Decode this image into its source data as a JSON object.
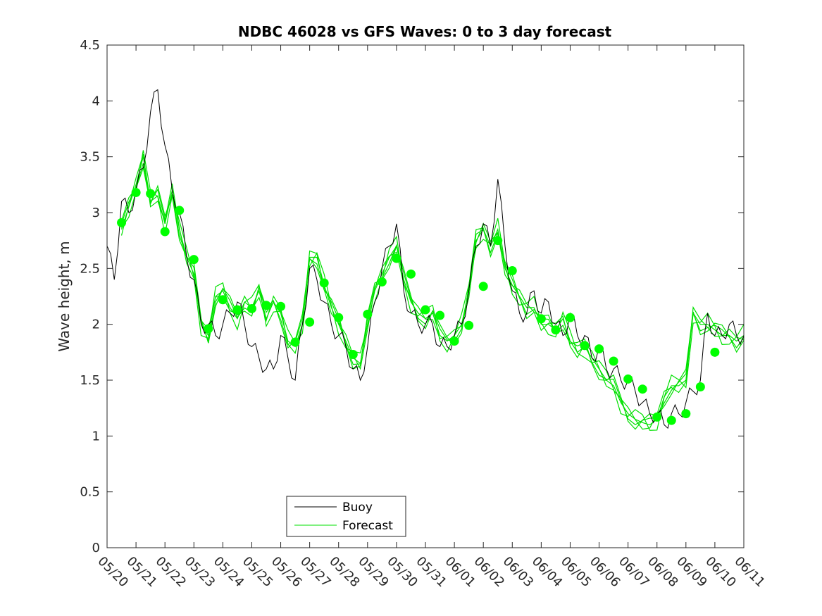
{
  "chart_data": {
    "type": "line",
    "title": "NDBC 46028 vs GFS Waves: 0 to 3 day forecast",
    "xlabel": "",
    "ylabel": "Wave height, m",
    "x_tick_labels": [
      "05/20",
      "05/21",
      "05/22",
      "05/23",
      "05/24",
      "05/25",
      "05/26",
      "05/27",
      "05/28",
      "05/29",
      "05/30",
      "05/31",
      "06/01",
      "06/02",
      "06/03",
      "06/04",
      "06/05",
      "06/06",
      "06/07",
      "06/08",
      "06/09",
      "06/10",
      "06/11"
    ],
    "y_ticks": [
      0,
      0.5,
      1,
      1.5,
      2,
      2.5,
      3,
      3.5,
      4,
      4.5
    ],
    "xlim_days": [
      0,
      22
    ],
    "ylim": [
      0,
      4.5
    ],
    "grid": false,
    "legend": {
      "placement": "bottom-center",
      "entries": [
        {
          "label": "Buoy",
          "color": "#000000"
        },
        {
          "label": "Forecast",
          "color": "#00e000"
        }
      ]
    },
    "colors": {
      "buoy": "#000000",
      "forecast": "#00e000",
      "markers": "#00ff00"
    },
    "buoy_series": {
      "name": "Buoy",
      "x_days": [
        0,
        0.25,
        0.5,
        0.75,
        1,
        1.25,
        1.5,
        1.75,
        2,
        2.25,
        2.5,
        2.75,
        3,
        3.25,
        3.5,
        3.75,
        4,
        4.25,
        4.5,
        4.75,
        5,
        5.25,
        5.5,
        5.75,
        6,
        6.25,
        6.5,
        6.75,
        7,
        7.25,
        7.5,
        7.75,
        8,
        8.25,
        8.5,
        8.75,
        9,
        9.25,
        9.5,
        9.75,
        10,
        10.25,
        10.5,
        10.75,
        11,
        11.25,
        11.5,
        11.75,
        12,
        12.25,
        12.5,
        12.75,
        13,
        13.25,
        13.5,
        13.75,
        14,
        14.25,
        14.5,
        14.75,
        15,
        15.25,
        15.5,
        15.75,
        16,
        16.25,
        16.5,
        16.75,
        17,
        17.25,
        17.5,
        17.75,
        18,
        18.25,
        18.5,
        18.75,
        19,
        19.25,
        19.5,
        19.75,
        20,
        20.25,
        20.5,
        20.75,
        21,
        21.25,
        21.5,
        21.75,
        22
      ],
      "values": [
        2.7,
        2.4,
        3.1,
        3.0,
        3.2,
        3.4,
        3.9,
        4.1,
        3.6,
        3.2,
        3.0,
        2.6,
        2.4,
        2.0,
        2.0,
        1.9,
        2.0,
        2.1,
        2.2,
        2.0,
        1.8,
        1.7,
        1.6,
        1.6,
        1.9,
        1.7,
        1.5,
        2.0,
        2.5,
        2.4,
        2.2,
        2.0,
        1.9,
        1.8,
        1.6,
        1.5,
        1.8,
        2.2,
        2.5,
        2.7,
        2.9,
        2.3,
        2.1,
        2.0,
        2.0,
        2.0,
        1.8,
        1.8,
        1.9,
        2.0,
        2.3,
        2.7,
        2.9,
        2.7,
        3.3,
        2.7,
        2.3,
        2.1,
        2.1,
        2.3,
        2.1,
        2.2,
        2.0,
        1.9,
        2.1,
        1.9,
        1.9,
        1.7,
        1.8,
        1.6,
        1.6,
        1.5,
        1.5,
        1.4,
        1.3,
        1.2,
        1.2,
        1.1,
        1.2,
        1.2,
        1.3,
        1.4,
        1.5,
        2.1,
        1.9,
        1.9,
        2.0,
        1.9,
        1.9
      ]
    },
    "forecast_series": {
      "name": "Forecast",
      "x_days": [
        0.5,
        0.75,
        1,
        1.25,
        1.5,
        1.75,
        2,
        2.25,
        2.5,
        2.75,
        3,
        3.25,
        3.5,
        3.75,
        4,
        4.25,
        4.5,
        4.75,
        5,
        5.25,
        5.5,
        5.75,
        6,
        6.25,
        6.5,
        6.75,
        7,
        7.25,
        7.5,
        7.75,
        8,
        8.25,
        8.5,
        8.75,
        9,
        9.25,
        9.5,
        9.75,
        10,
        10.25,
        10.5,
        10.75,
        11,
        11.25,
        11.5,
        11.75,
        12,
        12.25,
        12.5,
        12.75,
        13,
        13.25,
        13.5,
        13.75,
        14,
        14.25,
        14.5,
        14.75,
        15,
        15.25,
        15.5,
        15.75,
        16,
        16.25,
        16.5,
        16.75,
        17,
        17.25,
        17.5,
        17.75,
        18,
        18.25,
        18.5,
        18.75,
        19,
        19.25,
        19.5,
        19.75,
        20,
        20.25,
        20.5,
        20.75,
        21,
        21.25,
        21.5,
        21.75,
        22
      ],
      "values": [
        2.85,
        3.05,
        3.25,
        3.5,
        3.1,
        3.15,
        2.9,
        3.2,
        2.85,
        2.6,
        2.45,
        2.0,
        1.9,
        2.25,
        2.3,
        2.15,
        2.05,
        2.2,
        2.15,
        2.3,
        2.05,
        2.2,
        2.1,
        1.85,
        1.8,
        2.0,
        2.6,
        2.6,
        2.35,
        2.15,
        2.0,
        1.85,
        1.7,
        1.65,
        2.0,
        2.3,
        2.45,
        2.6,
        2.7,
        2.4,
        2.2,
        2.1,
        2.05,
        2.1,
        1.9,
        1.85,
        1.9,
        2.0,
        2.3,
        2.75,
        2.85,
        2.7,
        2.85,
        2.5,
        2.35,
        2.25,
        2.15,
        2.15,
        2.0,
        2.0,
        1.95,
        2.05,
        1.85,
        1.75,
        1.8,
        1.7,
        1.6,
        1.5,
        1.45,
        1.3,
        1.2,
        1.15,
        1.12,
        1.1,
        1.15,
        1.35,
        1.45,
        1.45,
        1.5,
        2.1,
        2.0,
        2.0,
        1.95,
        1.9,
        1.9,
        1.85,
        1.9
      ]
    },
    "marker_points": {
      "name": "Forecast",
      "x_days": [
        0.5,
        1,
        1.5,
        2,
        2.5,
        3,
        3.5,
        4,
        4.5,
        5,
        5.5,
        6,
        6.5,
        7,
        7.5,
        8,
        8.5,
        9,
        9.5,
        10,
        10.5,
        11,
        11.5,
        12,
        12.5,
        13,
        13.5,
        14,
        15,
        15.5,
        16,
        16.5,
        17,
        17.5,
        18,
        18.5,
        19,
        19.5,
        20,
        20.5,
        21
      ],
      "values": [
        2.91,
        3.18,
        3.17,
        2.83,
        3.02,
        2.58,
        1.96,
        2.22,
        2.13,
        2.14,
        2.17,
        2.16,
        1.84,
        2.02,
        2.37,
        2.06,
        1.73,
        2.09,
        2.38,
        2.59,
        2.45,
        2.13,
        2.08,
        1.85,
        1.99,
        2.34,
        2.75,
        2.48,
        2.05,
        1.95,
        2.06,
        1.81,
        1.78,
        1.67,
        1.51,
        1.42,
        1.17,
        1.14,
        1.2,
        1.44,
        1.75
      ]
    }
  }
}
